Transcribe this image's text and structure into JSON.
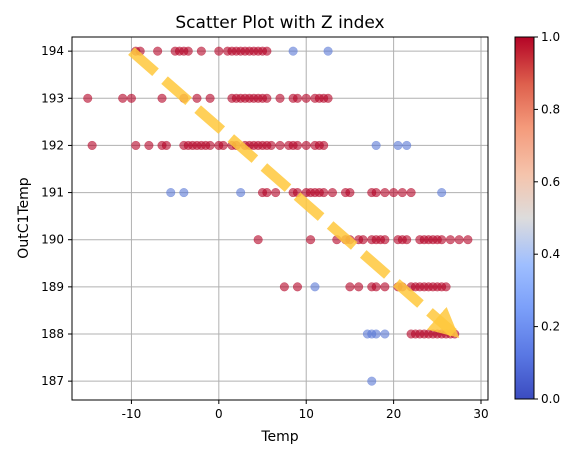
{
  "chart_data": {
    "type": "scatter",
    "title": "Scatter Plot with Z index",
    "xlabel": "Temp",
    "ylabel": "OutC1Temp",
    "xlim": [
      -16.8,
      30.8
    ],
    "ylim": [
      186.6,
      194.3
    ],
    "x_ticks": [
      -10,
      0,
      10,
      20,
      30
    ],
    "y_ticks": [
      187,
      188,
      189,
      190,
      191,
      192,
      193,
      194
    ],
    "grid": true,
    "colormap": "coolwarm",
    "colorbar": {
      "min": 0.0,
      "max": 1.0,
      "ticks": [
        0.0,
        0.2,
        0.4,
        0.6,
        0.8,
        1.0
      ]
    },
    "colors": {
      "high": "#b40426",
      "low": "#5a78d6",
      "arrow": "#ffc83c"
    },
    "annotations": [
      {
        "type": "arrow",
        "style": "dashed",
        "from": [
          -10,
          194
        ],
        "to": [
          27,
          188
        ]
      }
    ],
    "groups": [
      {
        "y": 194,
        "z": 1,
        "x": [
          -9.5,
          -9,
          -7,
          -5,
          -4.5,
          -4,
          -3.5,
          -2,
          0,
          1,
          1.5,
          2,
          2.5,
          3,
          3.5,
          4,
          4.5,
          5,
          5.5
        ]
      },
      {
        "y": 194,
        "z": 0,
        "x": [
          8.5,
          12.5
        ]
      },
      {
        "y": 193,
        "z": 1,
        "x": [
          -15,
          -11,
          -10,
          -6.5,
          -4,
          -2.5,
          -1,
          1.5,
          2,
          2.5,
          3,
          3.5,
          4,
          4.5,
          5,
          5.5,
          7,
          8.5,
          9,
          10,
          11,
          11.5,
          12,
          12.5
        ]
      },
      {
        "y": 192,
        "z": 1,
        "x": [
          -14.5,
          -9.5,
          -8,
          -6.5,
          -6,
          -4,
          -3.5,
          -3,
          -2.5,
          -2,
          -1.5,
          -1,
          0,
          0.5,
          1.5,
          2,
          3,
          3.5,
          4,
          4.5,
          5,
          5.5,
          6,
          7,
          8,
          8.5,
          9,
          10,
          11,
          11.5,
          12
        ]
      },
      {
        "y": 192,
        "z": 0,
        "x": [
          18,
          20.5,
          21.5
        ]
      },
      {
        "y": 191,
        "z": 1,
        "x": [
          5,
          5.5,
          6.5,
          8.5,
          9,
          10,
          10.5,
          11,
          11.5,
          12,
          13,
          14.5,
          15,
          17.5,
          18,
          19,
          20,
          21,
          22
        ]
      },
      {
        "y": 191,
        "z": 0,
        "x": [
          -5.5,
          -4,
          2.5,
          25.5
        ]
      },
      {
        "y": 190,
        "z": 1,
        "x": [
          4.5,
          10.5,
          13.5,
          14.5,
          15,
          16,
          16.5,
          17.5,
          18,
          18.5,
          19,
          20.5,
          21,
          21.5,
          23,
          23.5,
          24,
          24.5,
          25,
          25.5,
          26.5,
          27.5,
          28.5
        ]
      },
      {
        "y": 189,
        "z": 1,
        "x": [
          7.5,
          9,
          15,
          16,
          17.5,
          18,
          19,
          20.5,
          21,
          22,
          22.5,
          23,
          23.5,
          24,
          24.5,
          25,
          25.5,
          26
        ]
      },
      {
        "y": 189,
        "z": 0,
        "x": [
          11
        ]
      },
      {
        "y": 188,
        "z": 1,
        "x": [
          22,
          22.5,
          23,
          23.5,
          24,
          24.5,
          25,
          25.5,
          26,
          26.5,
          27
        ]
      },
      {
        "y": 188,
        "z": 0,
        "x": [
          17,
          17.5,
          18,
          19
        ]
      },
      {
        "y": 187,
        "z": 0,
        "x": [
          17.5
        ]
      }
    ]
  }
}
